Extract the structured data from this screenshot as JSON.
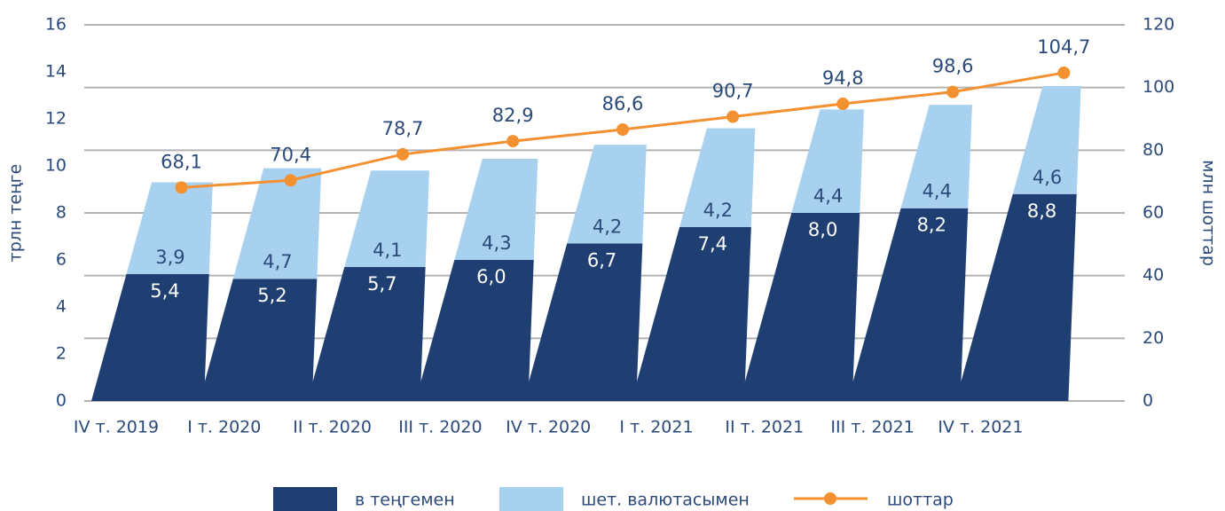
{
  "chart_data": {
    "type": "bar",
    "categories": [
      "IV т. 2019",
      "I т. 2020",
      "II т. 2020",
      "III т. 2020",
      "IV т. 2020",
      "I т. 2021",
      "II т. 2021",
      "III т. 2021",
      "IV т. 2021"
    ],
    "ylabel": "трлн теңге",
    "y2label": "млн шоттар",
    "ylim": [
      0,
      16
    ],
    "yticks": [
      0,
      2,
      4,
      6,
      8,
      10,
      12,
      14,
      16
    ],
    "y2lim": [
      0,
      120
    ],
    "y2ticks": [
      0,
      20,
      40,
      60,
      80,
      100,
      120
    ],
    "grid": true,
    "stacked": true,
    "series": [
      {
        "name": "в теңгемен",
        "color": "#1f3f73",
        "values": [
          5.4,
          5.2,
          5.7,
          6.0,
          6.7,
          7.4,
          8.0,
          8.2,
          8.8
        ],
        "value_labels": [
          "5,4",
          "5,2",
          "5,7",
          "6,0",
          "6,7",
          "7,4",
          "8,0",
          "8,2",
          "8,8"
        ]
      },
      {
        "name": "шет. валютасымен",
        "color": "#a8d1ef",
        "values": [
          3.9,
          4.7,
          4.1,
          4.3,
          4.2,
          4.2,
          4.4,
          4.4,
          4.6
        ],
        "value_labels": [
          "3,9",
          "4,7",
          "4,1",
          "4,3",
          "4,2",
          "4,2",
          "4,4",
          "4,4",
          "4,6"
        ]
      },
      {
        "name": "шоттар",
        "type": "line",
        "axis": "y2",
        "color": "#f39130",
        "values": [
          68.1,
          70.4,
          78.7,
          82.9,
          86.6,
          90.7,
          94.8,
          98.6,
          104.7
        ],
        "value_labels": [
          "68,1",
          "70,4",
          "78,7",
          "82,9",
          "86,6",
          "90,7",
          "94,8",
          "98,6",
          "104,7"
        ]
      }
    ]
  }
}
